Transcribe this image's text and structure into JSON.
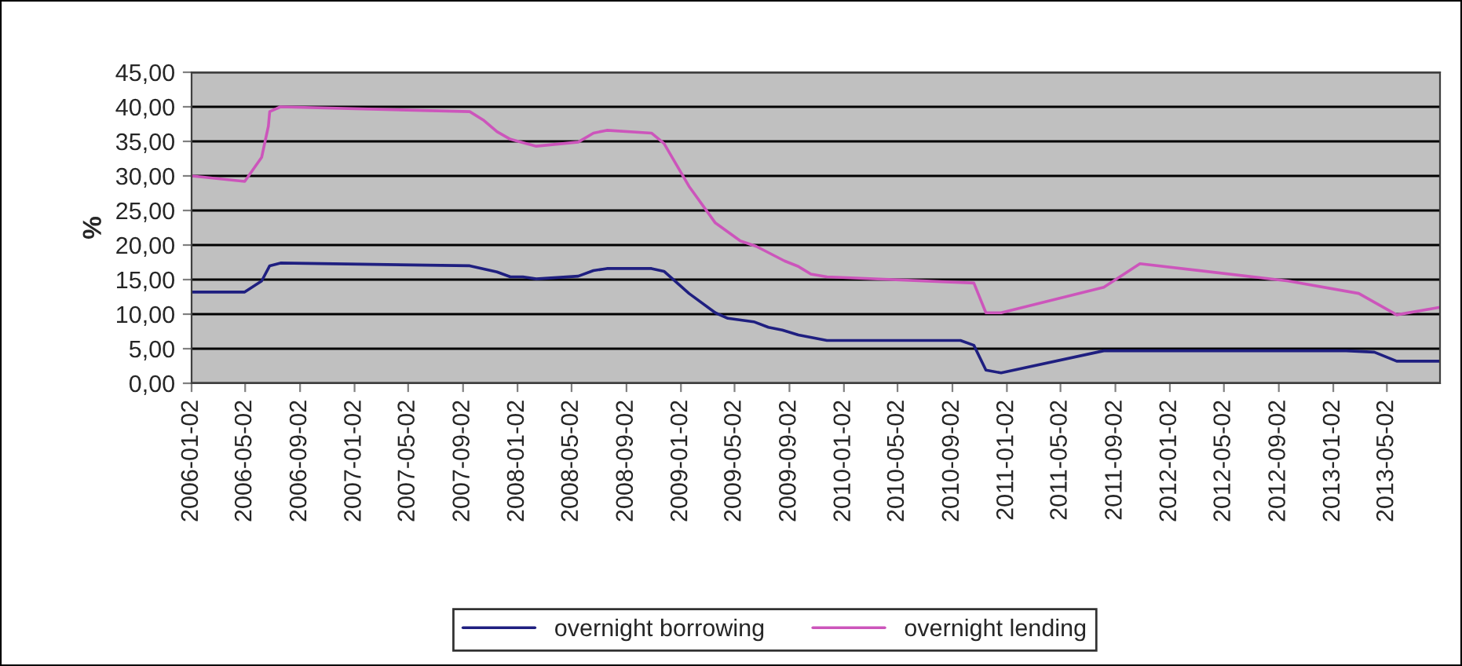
{
  "chart_data": {
    "type": "line",
    "ylabel": "%",
    "ylim": [
      0,
      45
    ],
    "yticks": [
      {
        "value": 0,
        "label": "0,00"
      },
      {
        "value": 5,
        "label": "5,00"
      },
      {
        "value": 10,
        "label": "10,00"
      },
      {
        "value": 15,
        "label": "15,00"
      },
      {
        "value": 20,
        "label": "20,00"
      },
      {
        "value": 25,
        "label": "25,00"
      },
      {
        "value": 30,
        "label": "30,00"
      },
      {
        "value": 35,
        "label": "35,00"
      },
      {
        "value": 40,
        "label": "40,00"
      },
      {
        "value": 45,
        "label": "45,00"
      }
    ],
    "xlim": [
      "2006-01-02",
      "2013-08-29"
    ],
    "xticks": [
      "2006-01-02",
      "2006-05-02",
      "2006-09-02",
      "2007-01-02",
      "2007-05-02",
      "2007-09-02",
      "2008-01-02",
      "2008-05-02",
      "2008-09-02",
      "2009-01-02",
      "2009-05-02",
      "2009-09-02",
      "2010-01-02",
      "2010-05-02",
      "2010-09-02",
      "2011-01-02",
      "2011-05-02",
      "2011-09-02",
      "2012-01-02",
      "2012-05-02",
      "2012-09-02",
      "2013-01-02",
      "2013-05-02"
    ],
    "grid": "y",
    "legend": "bottom",
    "marker": "none",
    "line_style": "solid",
    "series": [
      {
        "name": "overnight borrowing",
        "color": "#1f1f80",
        "x": [
          "2006-01-02",
          "2006-05-01",
          "2006-06-08",
          "2006-06-26",
          "2006-07-20",
          "2007-09-17",
          "2007-11-17",
          "2007-12-17",
          "2008-01-14",
          "2008-02-13",
          "2008-05-17",
          "2008-06-20",
          "2008-07-20",
          "2008-10-28",
          "2008-11-25",
          "2009-01-20",
          "2009-03-20",
          "2009-04-17",
          "2009-06-14",
          "2009-07-17",
          "2009-08-17",
          "2009-09-22",
          "2009-11-25",
          "2010-09-20",
          "2010-10-20",
          "2010-11-16",
          "2010-12-20",
          "2011-08-07",
          "2013-01-31",
          "2013-04-04",
          "2013-05-24",
          "2013-08-29"
        ],
        "values": [
          13.2,
          13.2,
          14.8,
          17.0,
          17.4,
          17.0,
          16.1,
          15.4,
          15.4,
          15.1,
          15.5,
          16.3,
          16.6,
          16.6,
          16.2,
          13.0,
          10.2,
          9.4,
          8.9,
          8.1,
          7.7,
          7.0,
          6.2,
          6.2,
          5.5,
          1.9,
          1.5,
          4.7,
          4.7,
          4.5,
          3.2,
          3.2
        ]
      },
      {
        "name": "overnight lending",
        "color": "#cc55bb",
        "x": [
          "2006-01-02",
          "2006-05-01",
          "2006-06-08",
          "2006-06-23",
          "2006-06-26",
          "2006-07-20",
          "2007-09-17",
          "2007-10-17",
          "2007-11-17",
          "2007-12-17",
          "2008-02-13",
          "2008-05-17",
          "2008-06-20",
          "2008-07-20",
          "2008-10-28",
          "2008-11-25",
          "2009-01-20",
          "2009-03-20",
          "2009-05-15",
          "2009-06-20",
          "2009-08-22",
          "2009-09-22",
          "2009-10-20",
          "2009-11-25",
          "2010-10-20",
          "2010-11-16",
          "2010-12-20",
          "2011-08-07",
          "2011-10-27",
          "2012-09-23",
          "2013-02-28",
          "2013-05-24",
          "2013-08-29"
        ],
        "values": [
          30.0,
          29.2,
          32.7,
          37.2,
          39.3,
          40.0,
          39.3,
          38.1,
          36.4,
          35.3,
          34.3,
          34.9,
          36.2,
          36.6,
          36.2,
          34.7,
          28.5,
          23.2,
          20.6,
          19.8,
          17.7,
          16.9,
          15.8,
          15.4,
          14.5,
          10.2,
          10.2,
          13.9,
          17.3,
          14.8,
          13.0,
          9.9,
          11.0
        ]
      }
    ]
  }
}
